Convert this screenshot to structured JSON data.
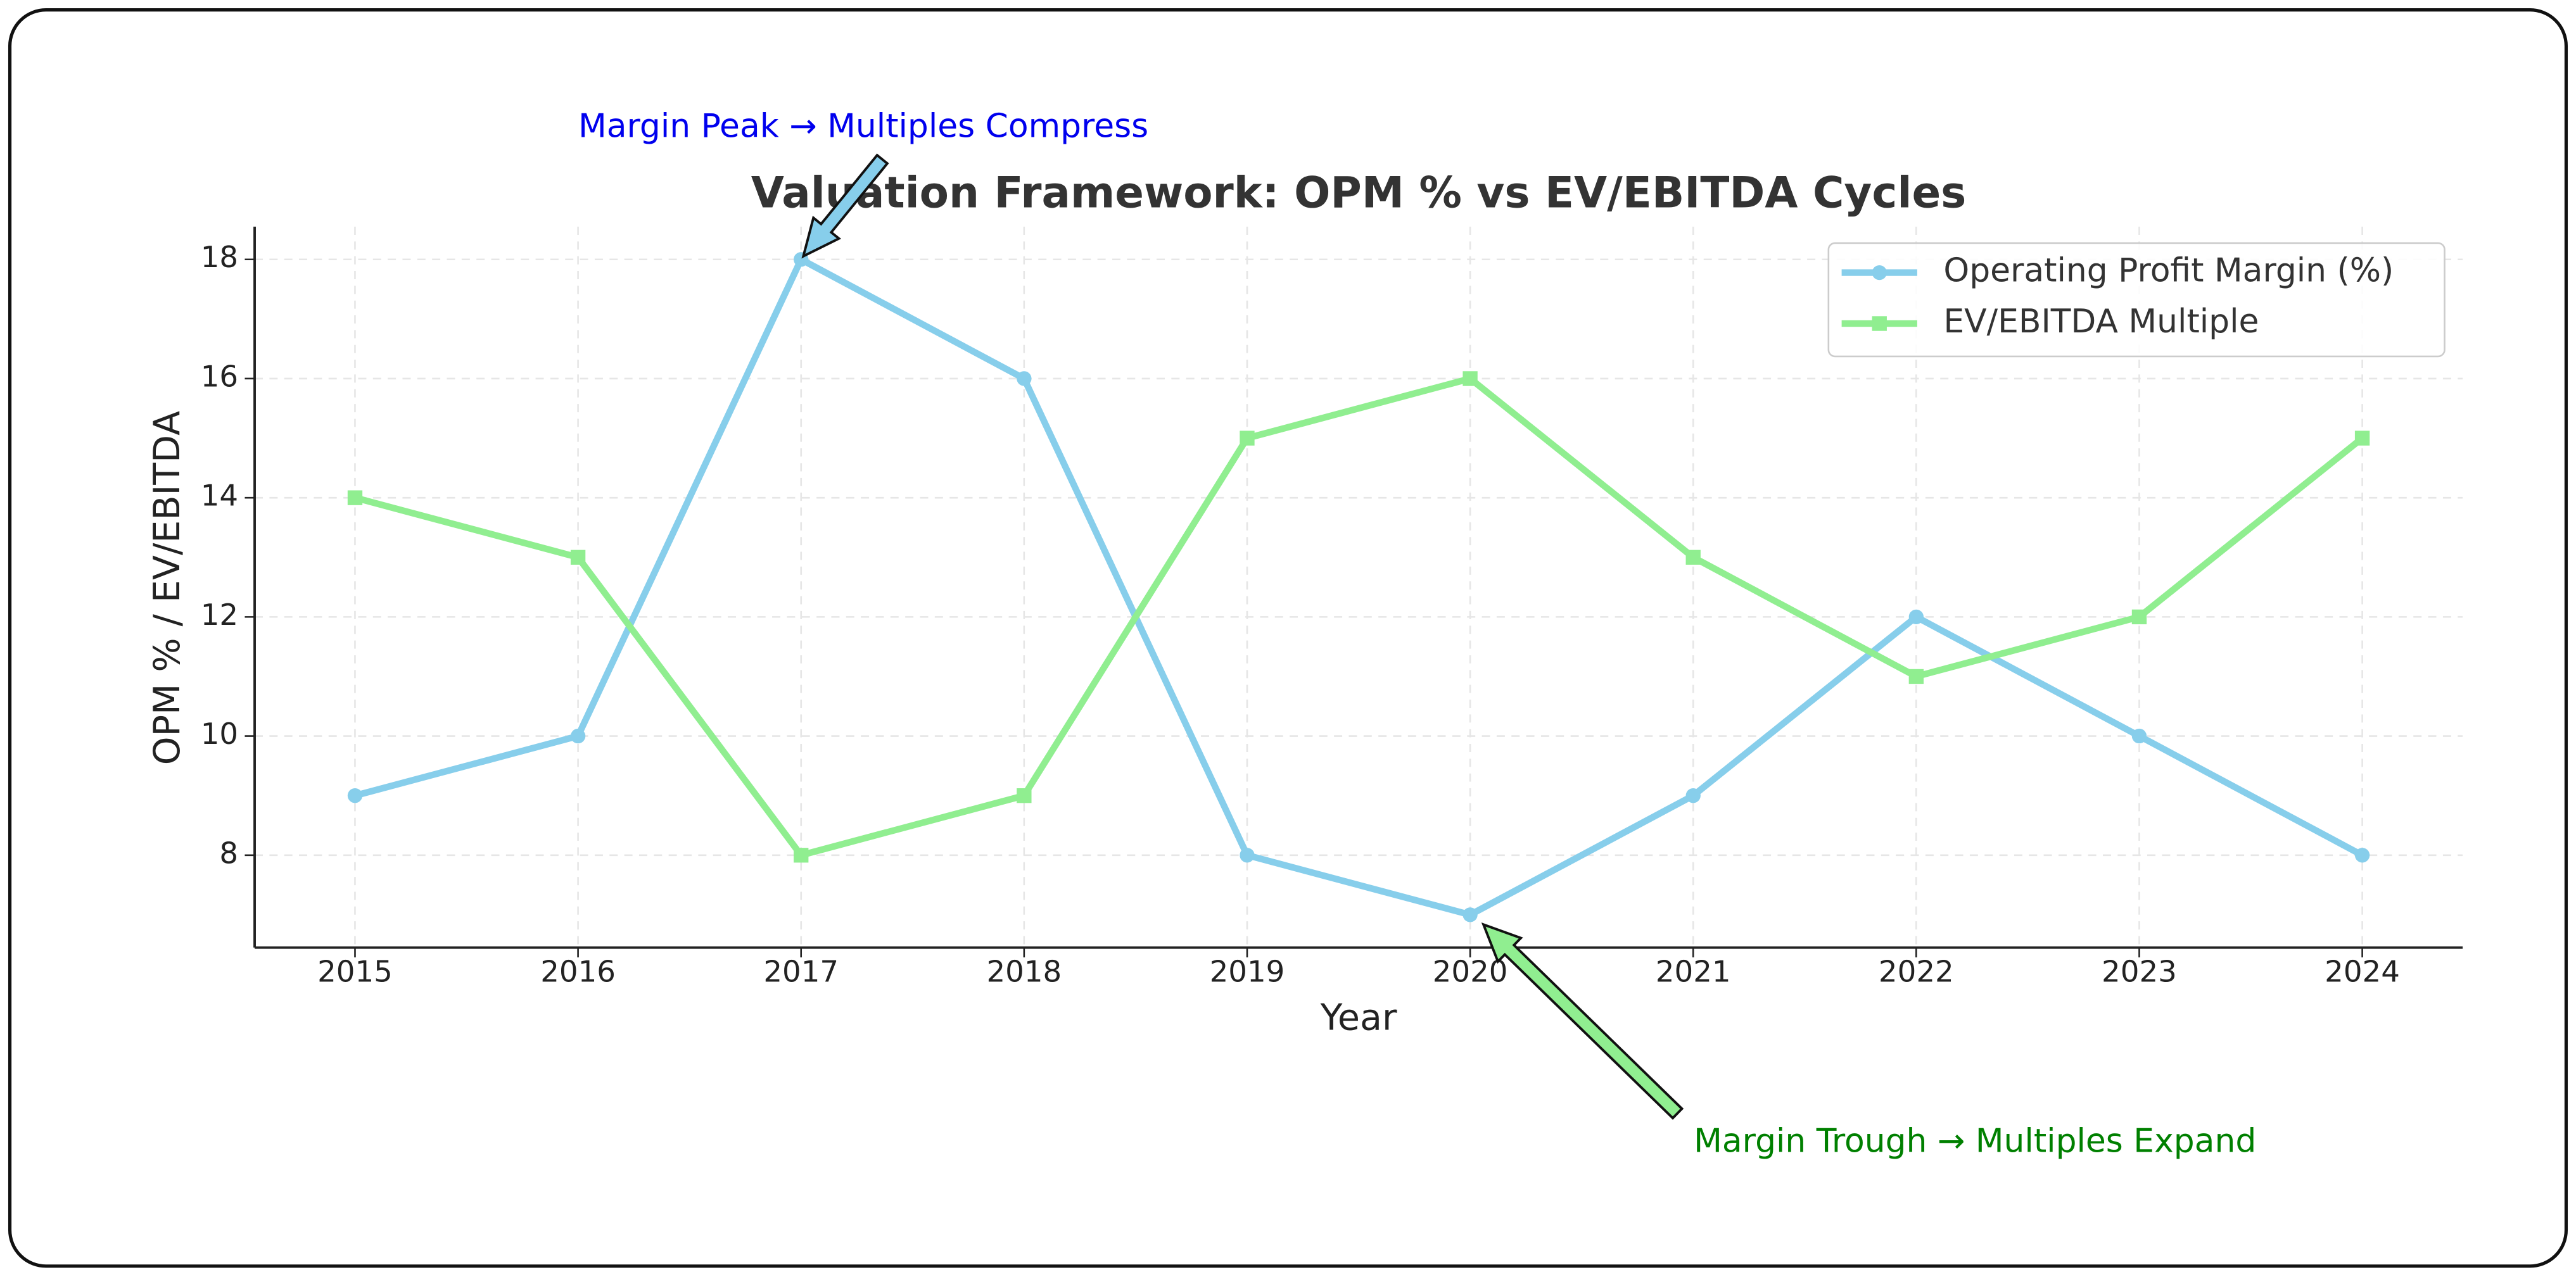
{
  "chart_data": {
    "type": "line",
    "title": "Valuation Framework: OPM % vs EV/EBITDA Cycles",
    "xlabel": "Year",
    "ylabel": "OPM % / EV/EBITDA",
    "x": [
      2015,
      2016,
      2017,
      2018,
      2019,
      2020,
      2021,
      2022,
      2023,
      2024
    ],
    "xlim": [
      2014.55,
      2024.45
    ],
    "xticks": [
      2015,
      2016,
      2017,
      2018,
      2019,
      2020,
      2021,
      2022,
      2023,
      2024
    ],
    "ylim": [
      6.45,
      18.55
    ],
    "yticks": [
      8,
      10,
      12,
      14,
      16,
      18
    ],
    "grid": true,
    "legend": "upper right",
    "series": [
      {
        "name": "Operating Profit Margin (%)",
        "color": "#87ceeb",
        "marker": "circle",
        "values": [
          9,
          10,
          18,
          16,
          8,
          7,
          9,
          12,
          10,
          8
        ]
      },
      {
        "name": "EV/EBITDA Multiple",
        "color": "#90ee90",
        "marker": "square",
        "values": [
          14,
          13,
          8,
          9,
          15,
          16,
          13,
          11,
          12,
          15
        ]
      }
    ],
    "annotations": [
      {
        "text": "Margin Peak → Multiples Compress",
        "color": "#0000ee"
      },
      {
        "text": "Margin Trough → Multiples Expand",
        "color": "#008000"
      }
    ]
  }
}
